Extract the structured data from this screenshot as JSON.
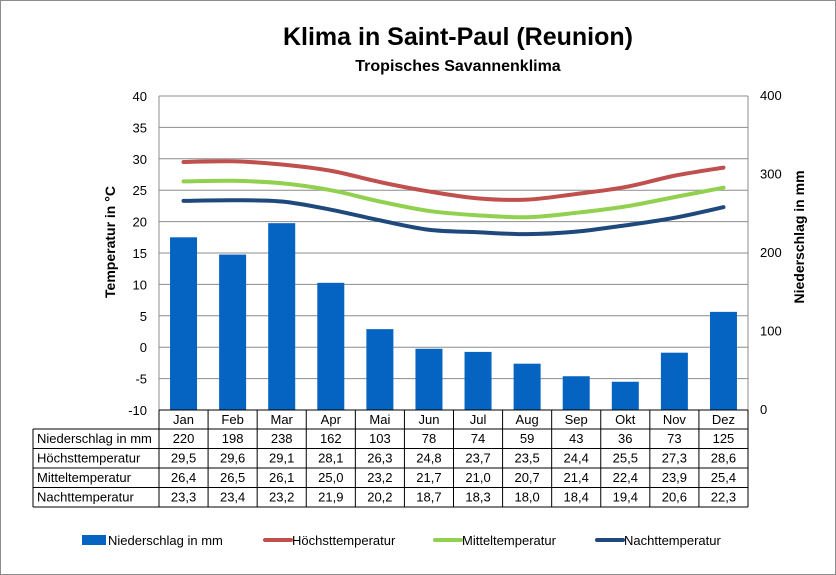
{
  "colors": {
    "bar": "#0563C1",
    "high": "#C0504D",
    "mid": "#92D050",
    "night": "#1F497D",
    "grid": "#8c8c8c"
  },
  "chart_data": {
    "type": "bar",
    "title": "Klima in Saint-Paul (Reunion)",
    "subtitle": "Tropisches Savannenklima",
    "ylabel_left": "Temperatur in °C",
    "ylabel_right": "Niederschlag in mm",
    "ylim_left": [
      -10,
      40
    ],
    "yticks_left": [
      "40",
      "35",
      "30",
      "25",
      "20",
      "15",
      "10",
      "5",
      "0",
      "-5",
      "-10"
    ],
    "ylim_right": [
      0,
      400
    ],
    "yticks_right": [
      "400",
      "300",
      "200",
      "100",
      "0"
    ],
    "grid": true,
    "legend_position": "bottom",
    "categories": [
      "Jan",
      "Feb",
      "Mar",
      "Apr",
      "Mai",
      "Jun",
      "Jul",
      "Aug",
      "Sep",
      "Okt",
      "Nov",
      "Dez"
    ],
    "series": [
      {
        "name": "Niederschlag in mm",
        "type": "bar",
        "axis": "right",
        "color": "#0563C1",
        "values": [
          220,
          198,
          238,
          162,
          103,
          78,
          74,
          59,
          43,
          36,
          73,
          125
        ],
        "labels": [
          "220",
          "198",
          "238",
          "162",
          "103",
          "78",
          "74",
          "59",
          "43",
          "36",
          "73",
          "125"
        ]
      },
      {
        "name": "Höchsttemperatur",
        "type": "line",
        "axis": "left",
        "color": "#C0504D",
        "values": [
          29.5,
          29.6,
          29.1,
          28.1,
          26.3,
          24.8,
          23.7,
          23.5,
          24.4,
          25.5,
          27.3,
          28.6
        ],
        "labels": [
          "29,5",
          "29,6",
          "29,1",
          "28,1",
          "26,3",
          "24,8",
          "23,7",
          "23,5",
          "24,4",
          "25,5",
          "27,3",
          "28,6"
        ]
      },
      {
        "name": "Mitteltemperatur",
        "type": "line",
        "axis": "left",
        "color": "#92D050",
        "values": [
          26.4,
          26.5,
          26.1,
          25.0,
          23.2,
          21.7,
          21.0,
          20.7,
          21.4,
          22.4,
          23.9,
          25.4
        ],
        "labels": [
          "26,4",
          "26,5",
          "26,1",
          "25,0",
          "23,2",
          "21,7",
          "21,0",
          "20,7",
          "21,4",
          "22,4",
          "23,9",
          "25,4"
        ]
      },
      {
        "name": "Nachttemperatur",
        "type": "line",
        "axis": "left",
        "color": "#1F497D",
        "values": [
          23.3,
          23.4,
          23.2,
          21.9,
          20.2,
          18.7,
          18.3,
          18.0,
          18.4,
          19.4,
          20.6,
          22.3
        ],
        "labels": [
          "23,3",
          "23,4",
          "23,2",
          "21,9",
          "20,2",
          "18,7",
          "18,3",
          "18,0",
          "18,4",
          "19,4",
          "20,6",
          "22,3"
        ]
      }
    ]
  }
}
